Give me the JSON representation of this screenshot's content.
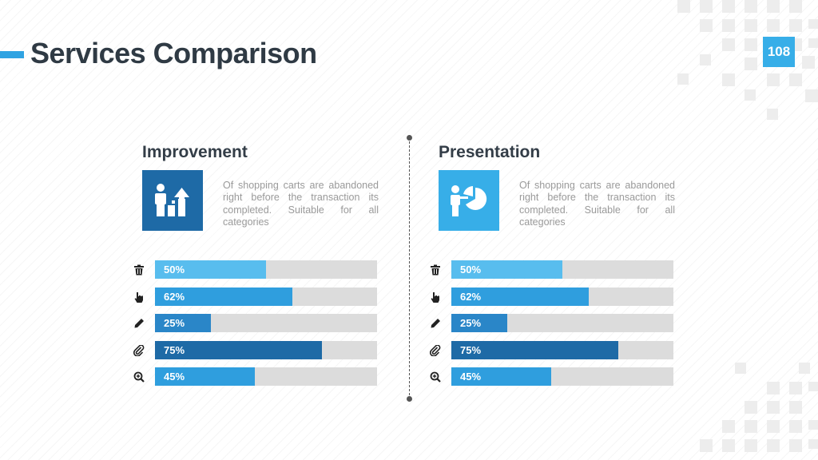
{
  "header": {
    "title": "Services Comparison",
    "page_number": "108"
  },
  "colors": {
    "accent": "#2fa3e2",
    "light_blue": "#58bdee",
    "mid_blue": "#2f9ede",
    "dark_blue": "#1e6aa6",
    "track": "#dcdcdc"
  },
  "panels": [
    {
      "heading": "Improvement",
      "icon": "person-growth-chart-icon",
      "icon_bg": "#1e6aa6",
      "description": "Of shopping carts are abandoned right before the transaction its completed. Suitable for all categories",
      "bars": [
        {
          "icon": "trash-icon",
          "label": "50%",
          "value": 0.5,
          "color": "#58bdee"
        },
        {
          "icon": "pointer-hand-icon",
          "label": "62%",
          "value": 0.62,
          "color": "#2f9ede"
        },
        {
          "icon": "pencil-icon",
          "label": "25%",
          "value": 0.25,
          "color": "#2a86c8"
        },
        {
          "icon": "paperclip-icon",
          "label": "75%",
          "value": 0.75,
          "color": "#1e6aa6"
        },
        {
          "icon": "zoom-in-icon",
          "label": "45%",
          "value": 0.45,
          "color": "#2f9ede"
        }
      ]
    },
    {
      "heading": "Presentation",
      "icon": "presenter-pie-chart-icon",
      "icon_bg": "#37aee8",
      "description": "Of shopping carts are abandoned right before the transaction its completed. Suitable for all categories",
      "bars": [
        {
          "icon": "trash-icon",
          "label": "50%",
          "value": 0.5,
          "color": "#58bdee"
        },
        {
          "icon": "pointer-hand-icon",
          "label": "62%",
          "value": 0.62,
          "color": "#2f9ede"
        },
        {
          "icon": "pencil-icon",
          "label": "25%",
          "value": 0.25,
          "color": "#2a86c8"
        },
        {
          "icon": "paperclip-icon",
          "label": "75%",
          "value": 0.75,
          "color": "#1e6aa6"
        },
        {
          "icon": "zoom-in-icon",
          "label": "45%",
          "value": 0.45,
          "color": "#2f9ede"
        }
      ]
    }
  ]
}
